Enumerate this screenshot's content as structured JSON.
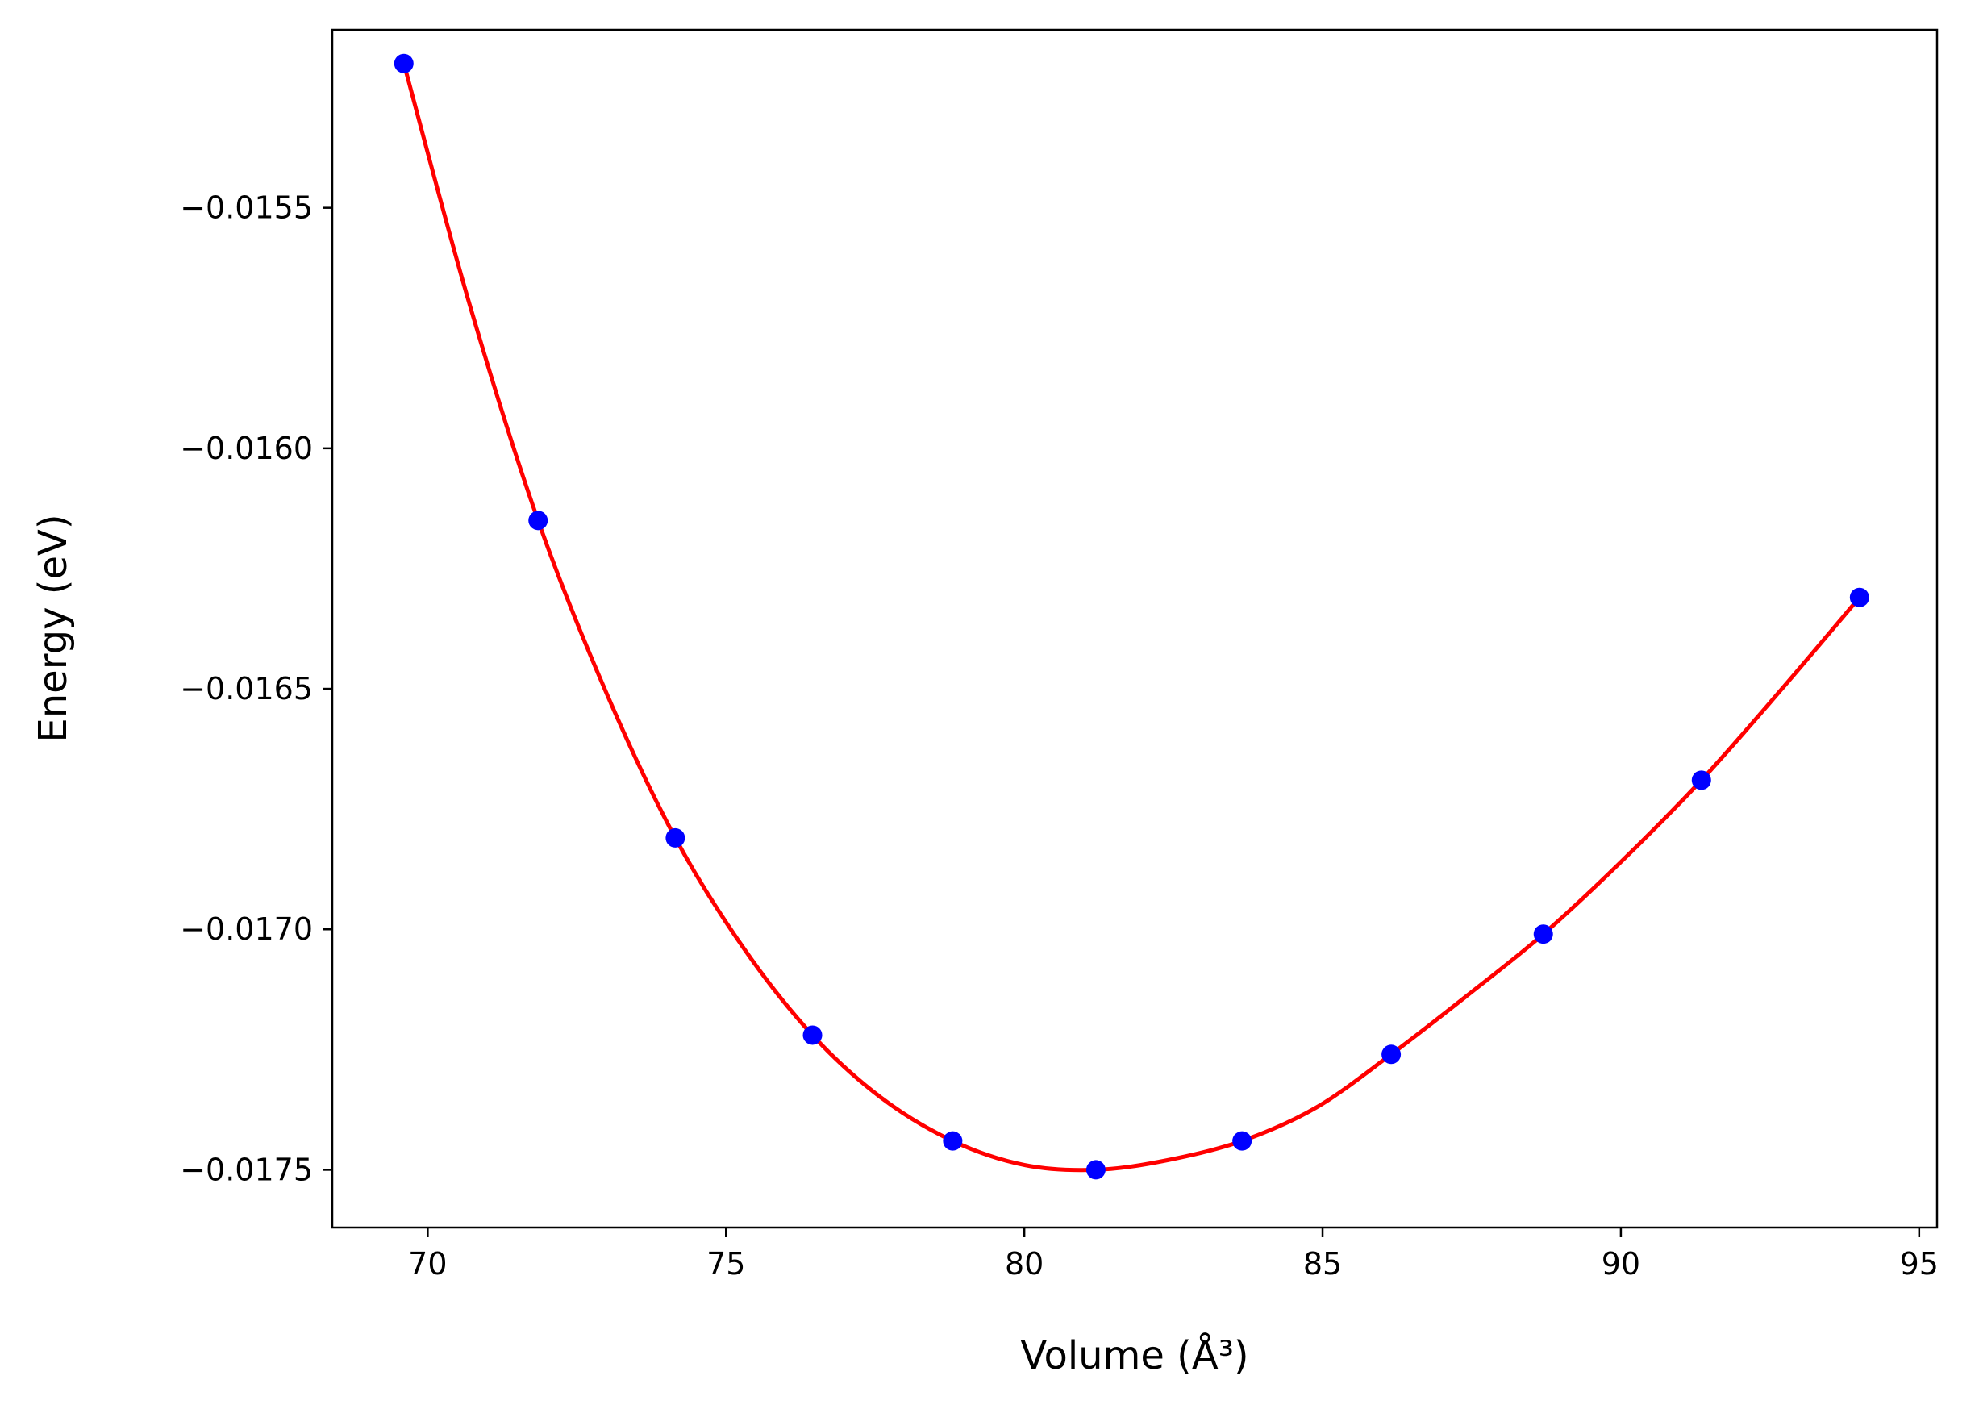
{
  "chart_data": {
    "type": "scatter",
    "xlabel": "Volume (Å³)",
    "ylabel": "Energy (eV)",
    "xlim": [
      68.4,
      95.3
    ],
    "ylim": [
      -0.01762,
      -0.01513
    ],
    "x_ticks": [
      70,
      75,
      80,
      85,
      90,
      95
    ],
    "x_tick_labels": [
      "70",
      "75",
      "80",
      "85",
      "90",
      "95"
    ],
    "y_ticks": [
      -0.0155,
      -0.016,
      -0.0165,
      -0.017,
      -0.0175
    ],
    "y_tick_labels": [
      "−0.0155",
      "−0.0160",
      "−0.0165",
      "−0.0170",
      "−0.0175"
    ],
    "grid": false,
    "series": [
      {
        "kind": "points",
        "color": "#0000ff",
        "x": [
          69.6,
          71.85,
          74.15,
          76.45,
          78.8,
          81.2,
          83.65,
          86.15,
          88.7,
          91.35,
          94.0
        ],
        "y": [
          -0.0152,
          -0.01615,
          -0.01681,
          -0.01722,
          -0.01744,
          -0.0175,
          -0.01744,
          -0.01726,
          -0.01701,
          -0.01669,
          -0.01631
        ]
      },
      {
        "kind": "fit-curve",
        "color": "#ff0000",
        "x": [
          69.6,
          70.7,
          71.85,
          73.0,
          74.15,
          75.3,
          76.45,
          77.6,
          78.8,
          80.0,
          81.2,
          82.4,
          83.65,
          84.9,
          86.15,
          87.4,
          88.7,
          90.0,
          91.35,
          92.7,
          94.0
        ],
        "y": [
          -0.0152,
          -0.0157,
          -0.01615,
          -0.01651,
          -0.01681,
          -0.01704,
          -0.01722,
          -0.01735,
          -0.01744,
          -0.01749,
          -0.0175,
          -0.01748,
          -0.01744,
          -0.01737,
          -0.01726,
          -0.01714,
          -0.01701,
          -0.01686,
          -0.01669,
          -0.0165,
          -0.01631
        ]
      }
    ]
  }
}
